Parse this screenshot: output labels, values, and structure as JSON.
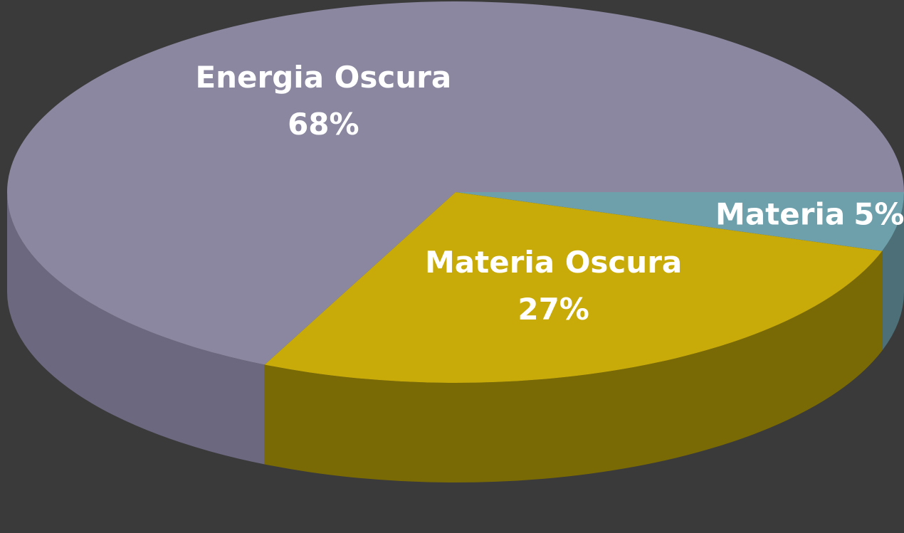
{
  "chart_data": {
    "type": "pie3d",
    "categories": [
      "Materia",
      "Materia Oscura",
      "Energia Oscura"
    ],
    "values": [
      5,
      27,
      68
    ],
    "value_labels": [
      "5%",
      "27%",
      "68%"
    ],
    "colors": [
      "#6ea0ab",
      "#c8ab08",
      "#8b87a0"
    ],
    "side_colors": [
      "#4d7078",
      "#7a6a05",
      "#6c6880"
    ]
  }
}
